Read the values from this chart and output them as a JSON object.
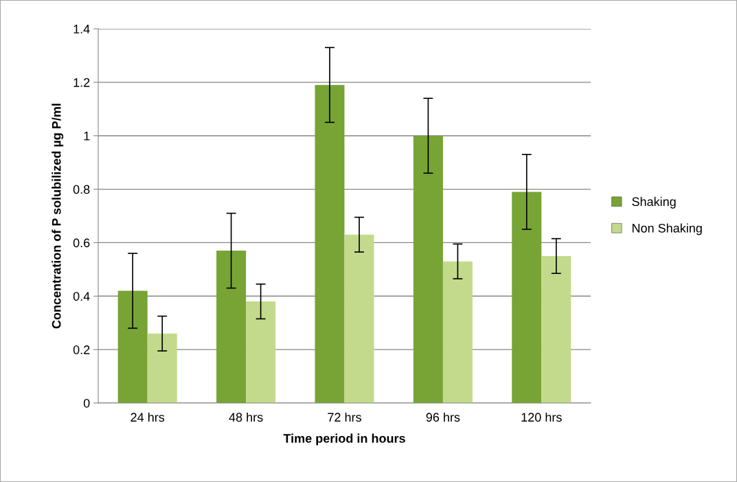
{
  "chart_data": {
    "type": "bar",
    "xlabel": "Time period in hours",
    "ylabel": "Concentration of P solubilized µg P/ml",
    "categories": [
      "24 hrs",
      "48 hrs",
      "72 hrs",
      "96 hrs",
      "120 hrs"
    ],
    "series": [
      {
        "name": "Shaking",
        "color": "#77a434",
        "values": [
          0.42,
          0.57,
          1.19,
          1.0,
          0.79
        ],
        "errors": [
          0.14,
          0.14,
          0.14,
          0.14,
          0.14
        ]
      },
      {
        "name": "Non Shaking",
        "color": "#c3da8c",
        "values": [
          0.26,
          0.38,
          0.63,
          0.53,
          0.55
        ],
        "errors": [
          0.065,
          0.065,
          0.065,
          0.065,
          0.065
        ]
      }
    ],
    "ylim": [
      0,
      1.4
    ],
    "yticks": [
      0,
      0.2,
      0.4,
      0.6,
      0.8,
      1,
      1.2,
      1.4
    ],
    "grid": "y",
    "legend": "right"
  }
}
